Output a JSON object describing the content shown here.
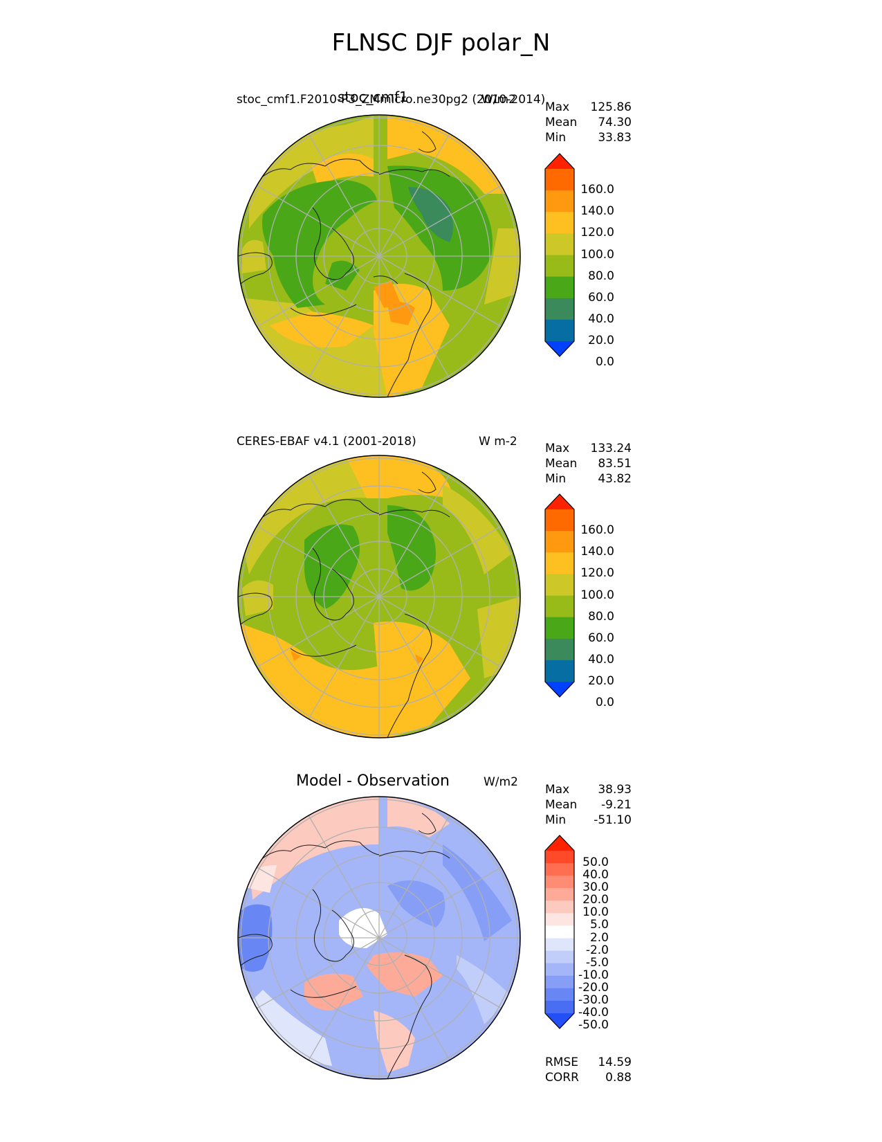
{
  "title": "FLNSC DJF polar_N",
  "panels": [
    {
      "title": "stoc_cmf1",
      "left_label": "stoc_cmf1.F2010-P3_ZMmicro.ne30pg2 (2010-2014)",
      "units": "W/m2",
      "stats": [
        {
          "label": "Max",
          "value": "125.86"
        },
        {
          "label": "Mean",
          "value": "74.30"
        },
        {
          "label": "Min",
          "value": "33.83"
        }
      ],
      "colorbar": {
        "labels": [
          "160.0",
          "140.0",
          "120.0",
          "100.0",
          "80.0",
          "60.0",
          "40.0",
          "20.0",
          "0.0"
        ],
        "colors": [
          "#ff2200",
          "#ff6a00",
          "#ff9a10",
          "#fdc020",
          "#cdc828",
          "#98bb1a",
          "#4aa818",
          "#3a8a5c",
          "#066ea2",
          "#0040ff"
        ]
      }
    },
    {
      "title": "",
      "left_label": "CERES-EBAF v4.1 (2001-2018)",
      "units": "W m-2",
      "stats": [
        {
          "label": "Max",
          "value": "133.24"
        },
        {
          "label": "Mean",
          "value": "83.51"
        },
        {
          "label": "Min",
          "value": "43.82"
        }
      ],
      "colorbar": {
        "labels": [
          "160.0",
          "140.0",
          "120.0",
          "100.0",
          "80.0",
          "60.0",
          "40.0",
          "20.0",
          "0.0"
        ],
        "colors": [
          "#ff2200",
          "#ff6a00",
          "#ff9a10",
          "#fdc020",
          "#cdc828",
          "#98bb1a",
          "#4aa818",
          "#3a8a5c",
          "#066ea2",
          "#0040ff"
        ]
      }
    },
    {
      "title": "Model - Observation",
      "left_label": "",
      "units": "W/m2",
      "stats": [
        {
          "label": "Max",
          "value": "38.93"
        },
        {
          "label": "Mean",
          "value": "-9.21"
        },
        {
          "label": "Min",
          "value": "-51.10"
        }
      ],
      "extra_stats": [
        {
          "label": "RMSE",
          "value": "14.59"
        },
        {
          "label": "CORR",
          "value": "0.88"
        }
      ],
      "colorbar": {
        "labels": [
          "50.0",
          "40.0",
          "30.0",
          "20.0",
          "10.0",
          "5.0",
          "2.0",
          "-2.0",
          "-5.0",
          "-10.0",
          "-20.0",
          "-30.0",
          "-40.0",
          "-50.0"
        ],
        "colors": [
          "#ff2200",
          "#ff4a2a",
          "#ff6e50",
          "#fe8c74",
          "#fdaa98",
          "#fdcac0",
          "#fde6e2",
          "#ffffff",
          "#dfe6fb",
          "#c2cefa",
          "#a4b6f8",
          "#869ef6",
          "#6886f4",
          "#4a6ef2",
          "#2250f6"
        ]
      }
    }
  ],
  "chart_data": [
    {
      "type": "heatmap",
      "title": "stoc_cmf1",
      "projection": "north-polar-stereographic",
      "field": "FLNSC DJF",
      "units": "W/m2",
      "levels": [
        0,
        20,
        40,
        60,
        80,
        100,
        120,
        140,
        160
      ],
      "stats": {
        "max": 125.86,
        "mean": 74.3,
        "min": 33.83
      }
    },
    {
      "type": "heatmap",
      "title": "CERES-EBAF v4.1 (2001-2018)",
      "projection": "north-polar-stereographic",
      "field": "FLNSC DJF",
      "units": "W m-2",
      "levels": [
        0,
        20,
        40,
        60,
        80,
        100,
        120,
        140,
        160
      ],
      "stats": {
        "max": 133.24,
        "mean": 83.51,
        "min": 43.82
      }
    },
    {
      "type": "heatmap",
      "title": "Model - Observation",
      "projection": "north-polar-stereographic",
      "units": "W/m2",
      "levels": [
        -50,
        -40,
        -30,
        -20,
        -10,
        -5,
        -2,
        2,
        5,
        10,
        20,
        30,
        40,
        50
      ],
      "stats": {
        "max": 38.93,
        "mean": -9.21,
        "min": -51.1,
        "rmse": 14.59,
        "corr": 0.88
      }
    }
  ]
}
